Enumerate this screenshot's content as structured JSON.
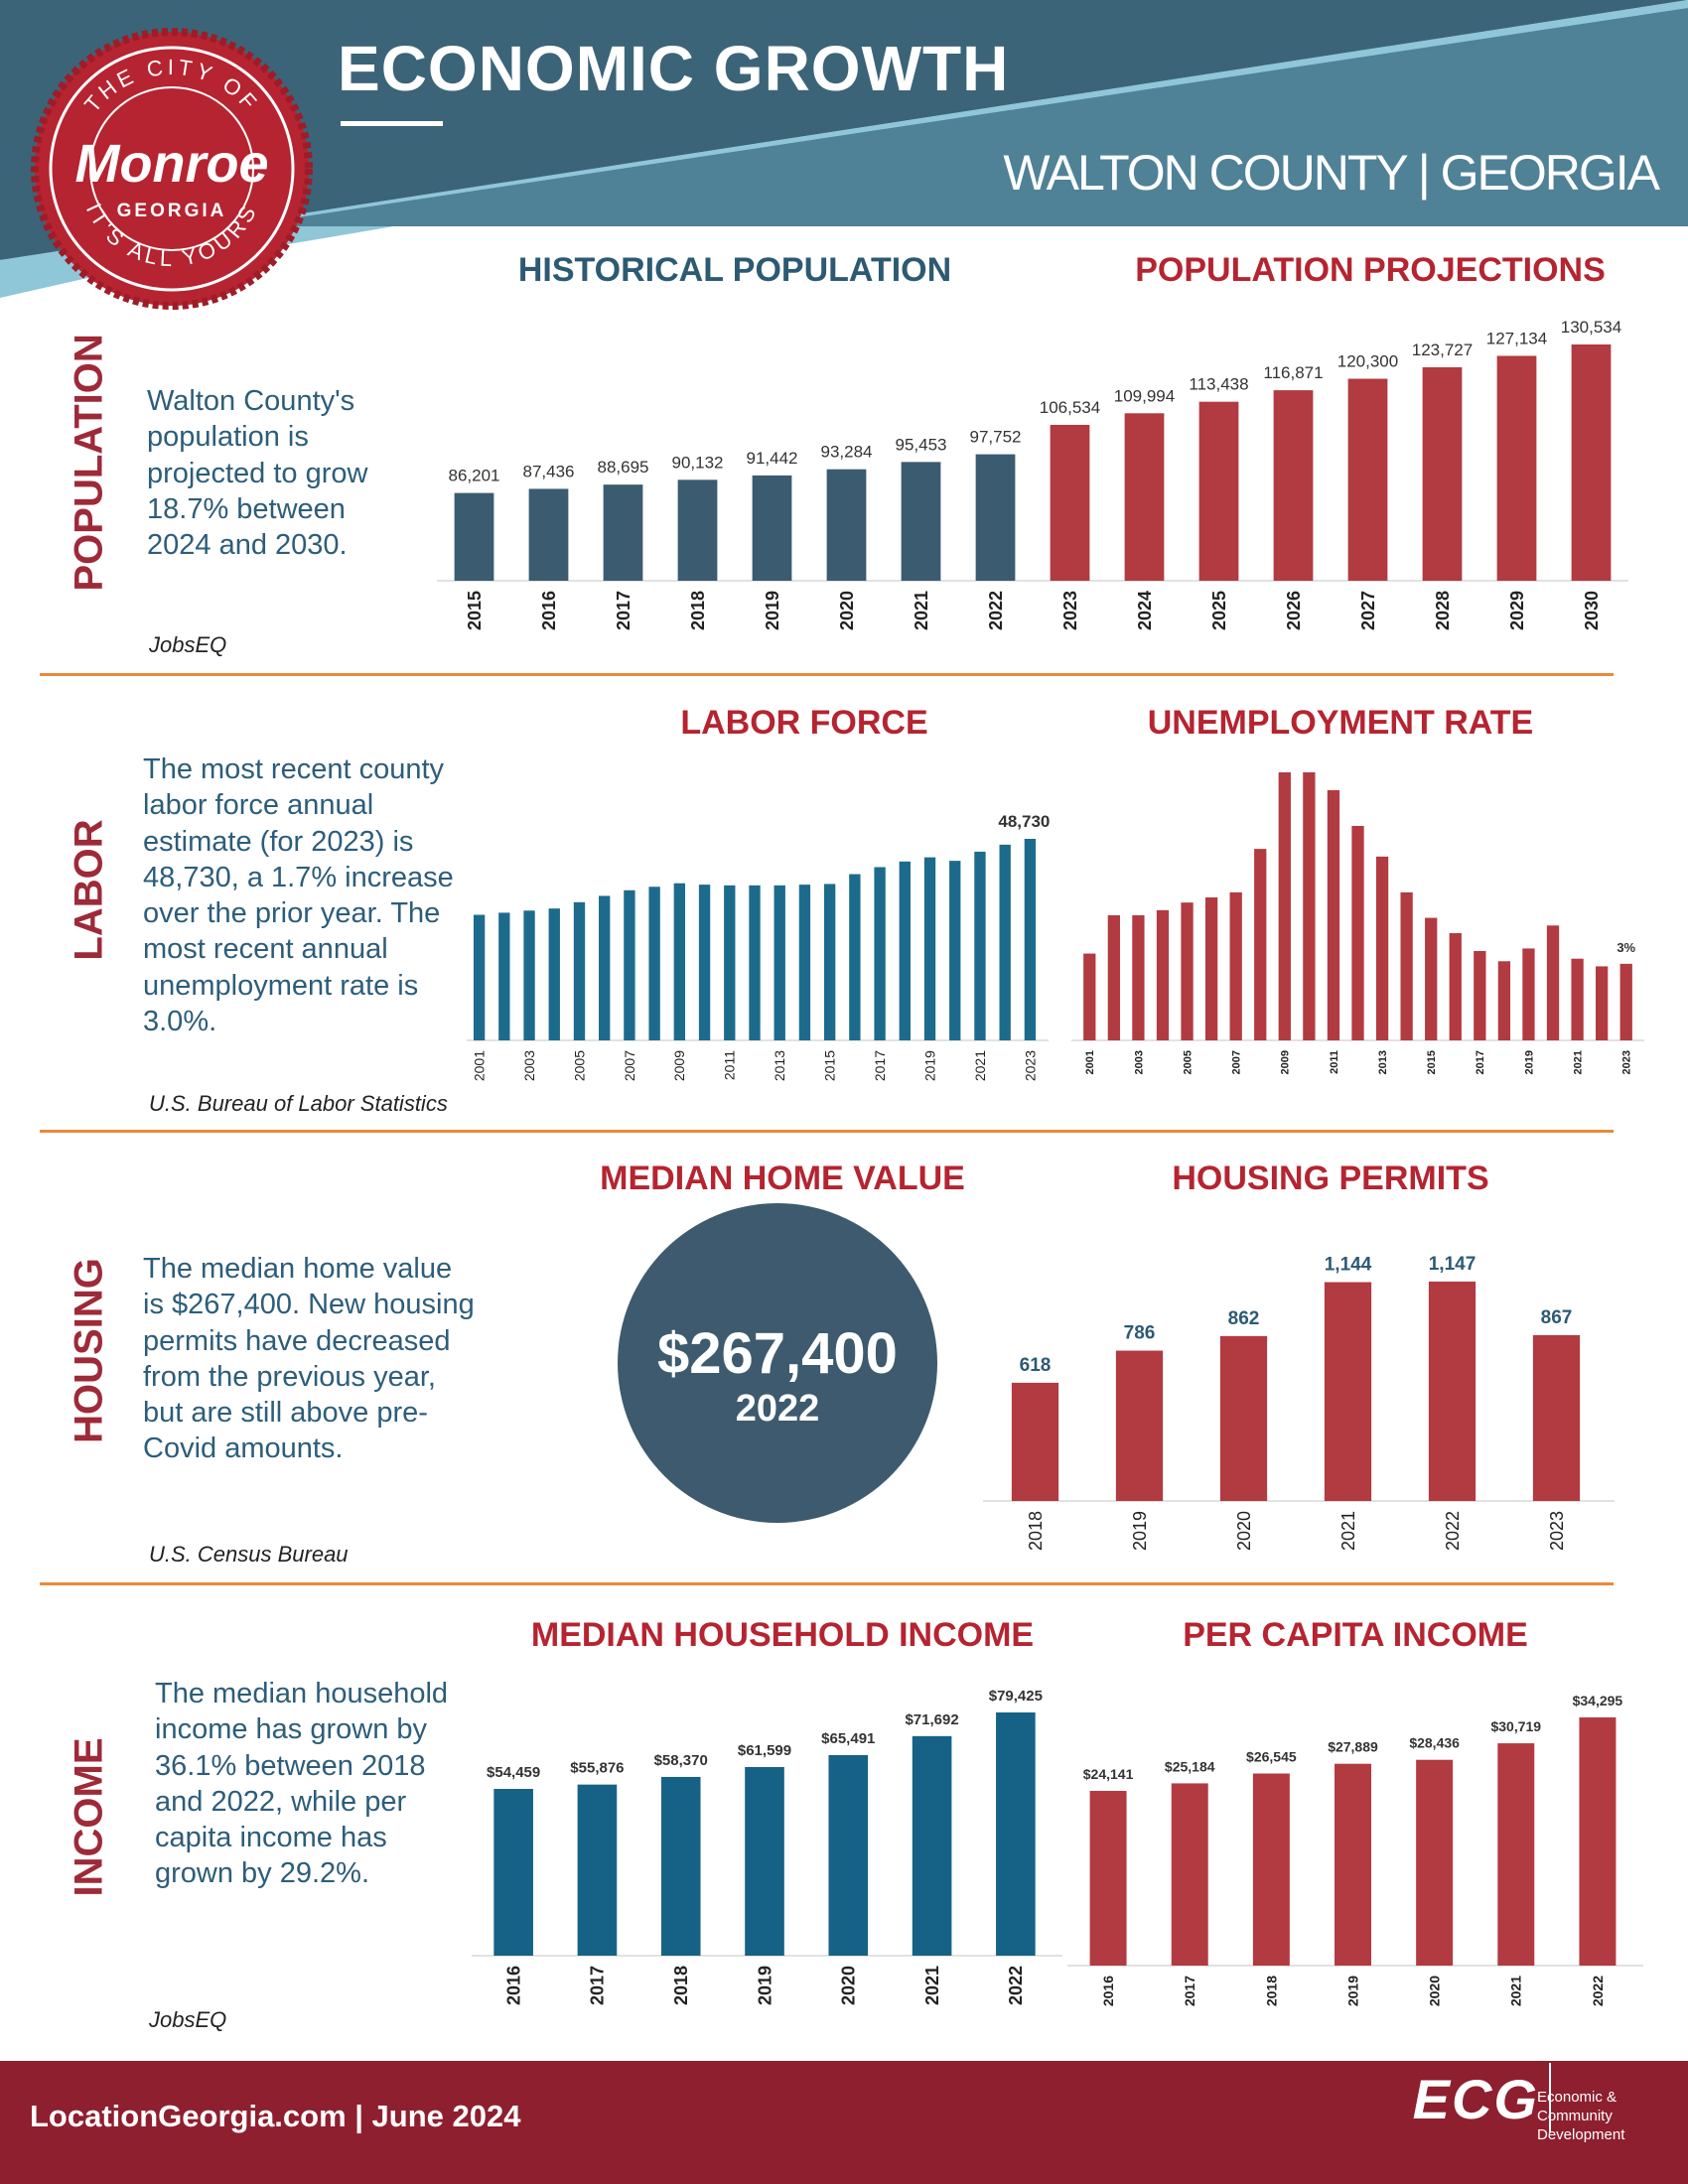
{
  "header": {
    "title": "ECONOMIC GROWTH",
    "subtitle": "WALTON COUNTY | GEORGIA",
    "colors": {
      "banner_dark": "#3b6478",
      "banner_light": "#4f8197",
      "stripe": "#8fc6d8"
    },
    "seal": {
      "top": "THE CITY OF",
      "name": "Monroe",
      "state": "GEORGIA",
      "bottom": "IT'S ALL YOURS"
    }
  },
  "population": {
    "side_label": "POPULATION",
    "text": "Walton County's population is projected to grow 18.7% between 2024 and 2030.",
    "source": "JobsEQ"
  },
  "labor": {
    "side_label": "LABOR",
    "text": "The most recent county labor force annual estimate (for 2023) is 48,730, a 1.7% increase over the prior year. The most recent annual unemployment rate is 3.0%.",
    "source": "U.S. Bureau of Labor Statistics"
  },
  "housing": {
    "side_label": "HOUSING",
    "text": "The median home value is $267,400. New housing permits have decreased from the previous year, but are still above pre-Covid amounts.",
    "source": "U.S. Census Bureau",
    "median_home_value": {
      "title": "MEDIAN HOME VALUE",
      "value": "$267,400",
      "year": "2022"
    }
  },
  "income": {
    "side_label": "INCOME",
    "text": "The median household income has grown by 36.1% between 2018 and 2022, while per capita income has grown by 29.2%.",
    "source": "JobsEQ"
  },
  "footer": {
    "left": "LocationGeorgia.com  |  June 2024",
    "logo": "ECG",
    "org_name": "Economic & Community Development"
  },
  "chart_data": [
    {
      "id": "population",
      "type": "bar",
      "title": "HISTORICAL POPULATION",
      "categories": [
        "2015",
        "2016",
        "2017",
        "2018",
        "2019",
        "2020",
        "2021",
        "2022",
        "2023",
        "2024",
        "2025",
        "2026",
        "2027",
        "2028",
        "2029",
        "2030"
      ],
      "series": [
        {
          "name": "HISTORICAL POPULATION",
          "color": "#3b5b70",
          "values": [
            86201,
            87436,
            88695,
            90132,
            91442,
            93284,
            95453,
            97752,
            null,
            null,
            null,
            null,
            null,
            null,
            null,
            null
          ]
        },
        {
          "name": "POPULATION PROJECTIONS",
          "color": "#b23a41",
          "values": [
            null,
            null,
            null,
            null,
            null,
            null,
            null,
            null,
            106534,
            109994,
            113438,
            116871,
            120300,
            123727,
            127134,
            130534
          ]
        }
      ],
      "labels": [
        "86,201",
        "87,436",
        "88,695",
        "90,132",
        "91,442",
        "93,284",
        "95,453",
        "97,752",
        "106,534",
        "109,994",
        "113,438",
        "116,871",
        "120,300",
        "123,727",
        "127,134",
        "130,534"
      ]
    },
    {
      "id": "labor_force",
      "type": "bar",
      "title": "LABOR FORCE",
      "color": "#1d6b8c",
      "categories": [
        "2001",
        "2002",
        "2003",
        "2004",
        "2005",
        "2006",
        "2007",
        "2008",
        "2009",
        "2010",
        "2011",
        "2012",
        "2013",
        "2014",
        "2015",
        "2016",
        "2017",
        "2018",
        "2019",
        "2020",
        "2021",
        "2022",
        "2023"
      ],
      "tick_labels": [
        "2001",
        "2003",
        "2005",
        "2007",
        "2009",
        "2011",
        "2013",
        "2015",
        "2017",
        "2019",
        "2021",
        "2023"
      ],
      "values": [
        37900,
        38200,
        38500,
        38800,
        39700,
        40600,
        41400,
        41900,
        42400,
        42200,
        42100,
        42100,
        42100,
        42200,
        42300,
        43700,
        44700,
        45500,
        46100,
        45600,
        46900,
        47900,
        48730
      ],
      "annotations": [
        {
          "x": "2023",
          "text": "48,730"
        }
      ]
    },
    {
      "id": "unemployment",
      "type": "bar",
      "title": "UNEMPLOYMENT RATE",
      "color": "#b23a41",
      "categories": [
        "2001",
        "2002",
        "2003",
        "2004",
        "2005",
        "2006",
        "2007",
        "2008",
        "2009",
        "2010",
        "2011",
        "2012",
        "2013",
        "2014",
        "2015",
        "2016",
        "2017",
        "2018",
        "2019",
        "2020",
        "2021",
        "2022",
        "2023"
      ],
      "tick_labels": [
        "2001",
        "2003",
        "2005",
        "2007",
        "2009",
        "2011",
        "2013",
        "2015",
        "2017",
        "2019",
        "2021",
        "2023"
      ],
      "values": [
        3.4,
        4.9,
        4.9,
        5.1,
        5.4,
        5.6,
        5.8,
        7.5,
        10.5,
        10.5,
        9.8,
        8.4,
        7.2,
        5.8,
        4.8,
        4.2,
        3.5,
        3.1,
        3.6,
        4.5,
        3.2,
        2.9,
        3.0
      ],
      "annotations": [
        {
          "x": "2023",
          "text": "3%"
        }
      ]
    },
    {
      "id": "housing_permits",
      "type": "bar",
      "title": "HOUSING PERMITS",
      "color": "#b23a41",
      "categories": [
        "2018",
        "2019",
        "2020",
        "2021",
        "2022",
        "2023"
      ],
      "values": [
        618,
        786,
        862,
        1144,
        1147,
        867
      ],
      "labels": [
        "618",
        "786",
        "862",
        "1,144",
        "1,147",
        "867"
      ]
    },
    {
      "id": "median_household_income",
      "type": "bar",
      "title": "MEDIAN HOUSEHOLD INCOME",
      "color": "#166286",
      "categories": [
        "2016",
        "2017",
        "2018",
        "2019",
        "2020",
        "2021",
        "2022"
      ],
      "values": [
        54459,
        55876,
        58370,
        61599,
        65491,
        71692,
        79425
      ],
      "labels": [
        "$54,459",
        "$55,876",
        "$58,370",
        "$61,599",
        "$65,491",
        "$71,692",
        "$79,425"
      ]
    },
    {
      "id": "per_capita_income",
      "type": "bar",
      "title": "PER CAPITA INCOME",
      "color": "#b23a41",
      "categories": [
        "2016",
        "2017",
        "2018",
        "2019",
        "2020",
        "2021",
        "2022"
      ],
      "values": [
        24141,
        25184,
        26545,
        27889,
        28436,
        30719,
        34295
      ],
      "labels": [
        "$24,141",
        "$25,184",
        "$26,545",
        "$27,889",
        "$28,436",
        "$30,719",
        "$34,295"
      ]
    }
  ]
}
